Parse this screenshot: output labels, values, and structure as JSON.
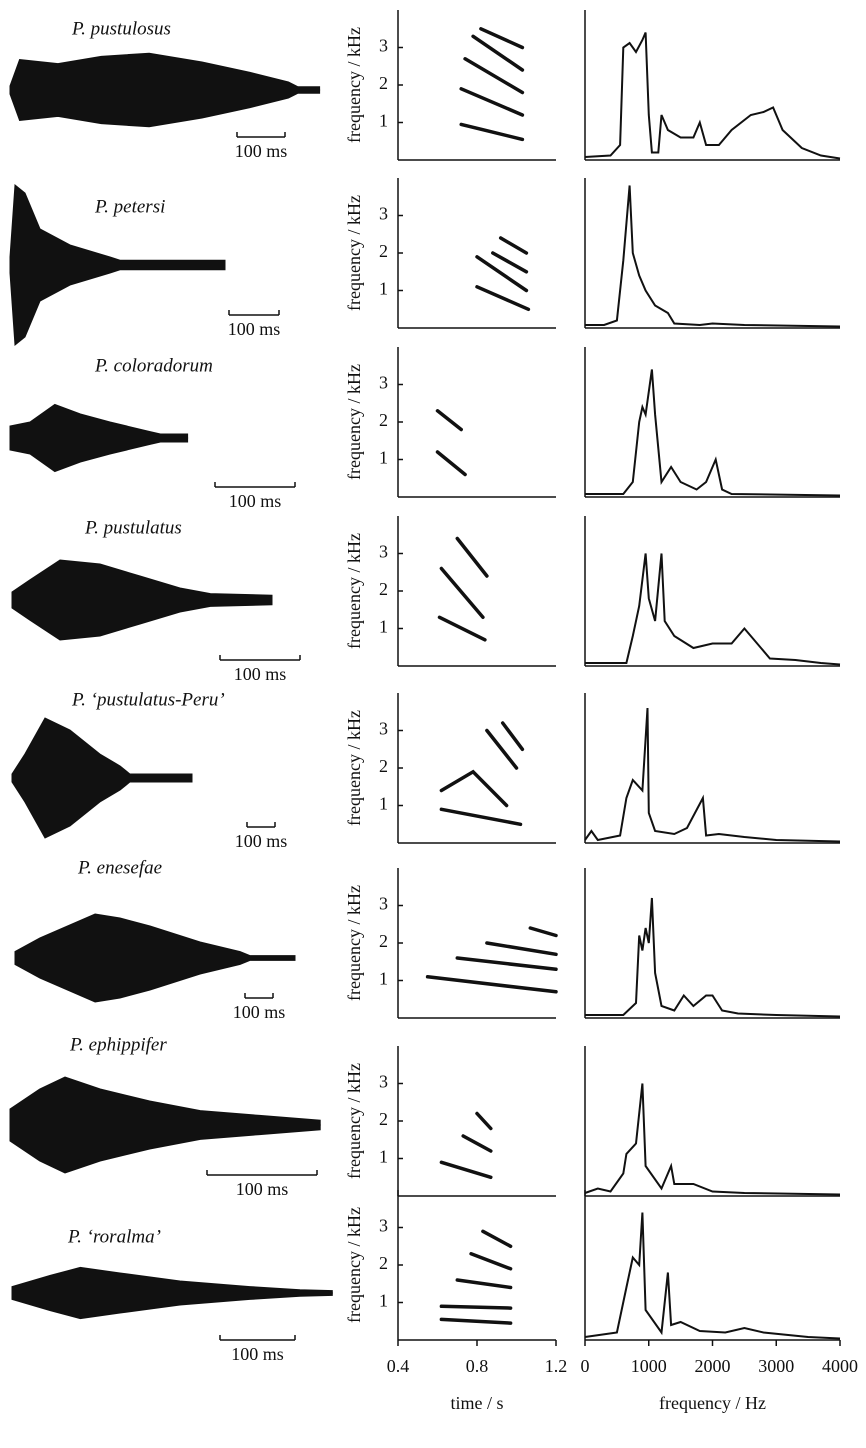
{
  "chart_data": {
    "type": "figure",
    "spectrogram": {
      "xlim": [
        0.4,
        1.2
      ],
      "xticks": [
        0.4,
        0.8,
        1.2
      ],
      "ylim": [
        0,
        4
      ],
      "yticks": [
        1,
        2,
        3
      ],
      "xlabel": "time / s",
      "ylabel": "frequency / kHz"
    },
    "spectrum": {
      "xlim": [
        0,
        4000
      ],
      "xticks": [
        0,
        1000,
        2000,
        3000,
        4000
      ],
      "xlabel": "frequency / Hz"
    },
    "species": [
      {
        "name": "P. pustulosus",
        "scale_label": "100 ms",
        "waveform": {
          "t": [
            0,
            20,
            100,
            190,
            290,
            400,
            500,
            580,
            600,
            645
          ],
          "amp": [
            0.05,
            0.38,
            0.33,
            0.42,
            0.46,
            0.35,
            0.22,
            0.1,
            0.04,
            0.04
          ]
        },
        "harmonics": [
          {
            "t": [
              0.72,
              1.03
            ],
            "f": [
              0.95,
              0.55
            ]
          },
          {
            "t": [
              0.72,
              1.03
            ],
            "f": [
              1.9,
              1.2
            ]
          },
          {
            "t": [
              0.74,
              1.03
            ],
            "f": [
              2.7,
              1.8
            ]
          },
          {
            "t": [
              0.78,
              1.03
            ],
            "f": [
              3.3,
              2.4
            ]
          },
          {
            "t": [
              0.82,
              1.03
            ],
            "f": [
              3.5,
              3.0
            ]
          }
        ],
        "spectrum": {
          "x": [
            0,
            400,
            550,
            600,
            700,
            800,
            900,
            950,
            1000,
            1050,
            1150,
            1200,
            1300,
            1500,
            1700,
            1800,
            1900,
            2100,
            2300,
            2600,
            2800,
            2950,
            3100,
            3400,
            3700,
            4000
          ],
          "amp": [
            0.02,
            0.03,
            0.1,
            0.75,
            0.78,
            0.72,
            0.8,
            0.85,
            0.3,
            0.05,
            0.05,
            0.3,
            0.2,
            0.15,
            0.15,
            0.25,
            0.1,
            0.1,
            0.2,
            0.3,
            0.32,
            0.35,
            0.2,
            0.08,
            0.03,
            0.01
          ]
        }
      },
      {
        "name": "P. petersi",
        "scale_label": "100 ms",
        "waveform": {
          "t": [
            0,
            10,
            30,
            60,
            120,
            200,
            220,
            430
          ],
          "amp": [
            0.1,
            1,
            0.9,
            0.45,
            0.25,
            0.1,
            0.06,
            0.06
          ]
        },
        "harmonics": [
          {
            "t": [
              0.8,
              1.06
            ],
            "f": [
              1.1,
              0.5
            ]
          },
          {
            "t": [
              0.8,
              1.05
            ],
            "f": [
              1.9,
              1.0
            ]
          },
          {
            "t": [
              0.88,
              1.05
            ],
            "f": [
              2.0,
              1.5
            ]
          },
          {
            "t": [
              0.92,
              1.05
            ],
            "f": [
              2.4,
              2.0
            ]
          }
        ],
        "spectrum": {
          "x": [
            0,
            300,
            500,
            600,
            700,
            750,
            850,
            950,
            1100,
            1300,
            1400,
            1800,
            2000,
            2500,
            4000
          ],
          "amp": [
            0.02,
            0.02,
            0.05,
            0.45,
            0.95,
            0.5,
            0.35,
            0.25,
            0.15,
            0.1,
            0.03,
            0.02,
            0.03,
            0.02,
            0.01
          ]
        }
      },
      {
        "name": "P. coloradorum",
        "scale_label": "100 ms",
        "waveform": {
          "t": [
            0,
            25,
            56,
            88,
            125,
            175,
            188,
            222
          ],
          "amp": [
            0.15,
            0.2,
            0.42,
            0.3,
            0.2,
            0.08,
            0.05,
            0.05
          ]
        },
        "harmonics": [
          {
            "t": [
              0.6,
              0.74
            ],
            "f": [
              1.2,
              0.6
            ]
          },
          {
            "t": [
              0.6,
              0.72
            ],
            "f": [
              2.3,
              1.8
            ]
          }
        ],
        "spectrum": {
          "x": [
            0,
            600,
            750,
            850,
            900,
            950,
            1050,
            1100,
            1200,
            1350,
            1500,
            1750,
            1900,
            2050,
            2150,
            2300,
            4000
          ],
          "amp": [
            0.02,
            0.02,
            0.1,
            0.5,
            0.6,
            0.55,
            0.85,
            0.55,
            0.1,
            0.2,
            0.1,
            0.05,
            0.1,
            0.25,
            0.05,
            0.02,
            0.01
          ]
        }
      },
      {
        "name": "P. pustulatus",
        "scale_label": "100 ms",
        "waveform": {
          "t": [
            0,
            22,
            60,
            110,
            160,
            210,
            248,
            325
          ],
          "amp": [
            0.1,
            0.25,
            0.5,
            0.45,
            0.3,
            0.15,
            0.08,
            0.06
          ]
        },
        "harmonics": [
          {
            "t": [
              0.61,
              0.84
            ],
            "f": [
              1.3,
              0.7
            ]
          },
          {
            "t": [
              0.62,
              0.83
            ],
            "f": [
              2.6,
              1.3
            ]
          },
          {
            "t": [
              0.7,
              0.85
            ],
            "f": [
              3.4,
              2.4
            ]
          }
        ],
        "spectrum": {
          "x": [
            0,
            650,
            750,
            850,
            950,
            1000,
            1100,
            1200,
            1250,
            1400,
            1700,
            2000,
            2300,
            2500,
            2600,
            2900,
            3300,
            3700,
            4000
          ],
          "amp": [
            0.02,
            0.02,
            0.2,
            0.4,
            0.75,
            0.45,
            0.3,
            0.75,
            0.3,
            0.2,
            0.12,
            0.15,
            0.15,
            0.25,
            0.2,
            0.05,
            0.04,
            0.02,
            0.01
          ]
        }
      },
      {
        "name": "P. ‘pustulatus-Peru’",
        "scale_label": "100 ms",
        "waveform": {
          "t": [
            0,
            46,
            118,
            207,
            314,
            386,
            421,
            643
          ],
          "amp": [
            0.05,
            0.3,
            0.75,
            0.6,
            0.3,
            0.15,
            0.05,
            0.05
          ]
        },
        "harmonics": [
          {
            "t": [
              0.62,
              1.02
            ],
            "f": [
              0.9,
              0.5
            ]
          },
          {
            "t": [
              0.62,
              0.78,
              0.95
            ],
            "f": [
              1.4,
              1.9,
              1.0
            ]
          },
          {
            "t": [
              0.85,
              1.0
            ],
            "f": [
              3.0,
              2.0
            ]
          },
          {
            "t": [
              0.93,
              1.03
            ],
            "f": [
              3.2,
              2.5
            ]
          }
        ],
        "spectrum": {
          "x": [
            0,
            100,
            200,
            550,
            650,
            750,
            900,
            980,
            1000,
            1100,
            1400,
            1600,
            1850,
            1900,
            2100,
            2500,
            3000,
            4000
          ],
          "amp": [
            0.02,
            0.08,
            0.02,
            0.05,
            0.3,
            0.42,
            0.35,
            0.9,
            0.2,
            0.08,
            0.06,
            0.1,
            0.3,
            0.05,
            0.06,
            0.04,
            0.02,
            0.01
          ]
        }
      },
      {
        "name": "P. enesefae",
        "scale_label": "100 ms",
        "waveform": {
          "t": [
            0,
            89,
            286,
            375,
            482,
            661,
            804,
            839,
            1000
          ],
          "amp": [
            0.08,
            0.25,
            0.55,
            0.5,
            0.4,
            0.2,
            0.08,
            0.03,
            0.03
          ]
        },
        "harmonics": [
          {
            "t": [
              0.55,
              1.2
            ],
            "f": [
              1.1,
              0.7
            ]
          },
          {
            "t": [
              0.7,
              1.2
            ],
            "f": [
              1.6,
              1.3
            ]
          },
          {
            "t": [
              0.85,
              1.2
            ],
            "f": [
              2.0,
              1.7
            ]
          },
          {
            "t": [
              1.07,
              1.2
            ],
            "f": [
              2.4,
              2.2
            ]
          }
        ],
        "spectrum": {
          "x": [
            0,
            600,
            800,
            850,
            900,
            950,
            1000,
            1050,
            1100,
            1200,
            1400,
            1550,
            1700,
            1900,
            2000,
            2150,
            2400,
            3000,
            4000
          ],
          "amp": [
            0.02,
            0.02,
            0.1,
            0.55,
            0.45,
            0.6,
            0.5,
            0.8,
            0.3,
            0.08,
            0.05,
            0.15,
            0.08,
            0.15,
            0.15,
            0.05,
            0.03,
            0.02,
            0.01
          ]
        }
      },
      {
        "name": "P. ephippifer",
        "scale_label": "100 ms",
        "waveform": {
          "t": [
            0,
            27,
            50,
            82,
            127,
            173,
            227,
            264,
            282
          ],
          "amp": [
            0.2,
            0.45,
            0.6,
            0.45,
            0.3,
            0.18,
            0.12,
            0.08,
            0.06
          ]
        },
        "harmonics": [
          {
            "t": [
              0.62,
              0.87
            ],
            "f": [
              0.9,
              0.5
            ]
          },
          {
            "t": [
              0.73,
              0.87
            ],
            "f": [
              1.6,
              1.2
            ]
          },
          {
            "t": [
              0.8,
              0.87
            ],
            "f": [
              2.2,
              1.8
            ]
          }
        ],
        "spectrum": {
          "x": [
            0,
            200,
            400,
            600,
            650,
            800,
            900,
            950,
            1200,
            1350,
            1400,
            1700,
            2000,
            2500,
            4000
          ],
          "amp": [
            0.02,
            0.05,
            0.03,
            0.15,
            0.28,
            0.35,
            0.75,
            0.2,
            0.05,
            0.2,
            0.08,
            0.08,
            0.03,
            0.02,
            0.01
          ]
        }
      },
      {
        "name": "P. ‘roralma’",
        "scale_label": "100 ms",
        "waveform": {
          "t": [
            0,
            51,
            91,
            144,
            224,
            317,
            384,
            427
          ],
          "amp": [
            0.08,
            0.22,
            0.32,
            0.25,
            0.15,
            0.08,
            0.04,
            0.03
          ]
        },
        "harmonics": [
          {
            "t": [
              0.62,
              0.97
            ],
            "f": [
              0.55,
              0.45
            ]
          },
          {
            "t": [
              0.62,
              0.97
            ],
            "f": [
              0.9,
              0.85
            ]
          },
          {
            "t": [
              0.7,
              0.97
            ],
            "f": [
              1.6,
              1.4
            ]
          },
          {
            "t": [
              0.77,
              0.97
            ],
            "f": [
              2.3,
              1.9
            ]
          },
          {
            "t": [
              0.83,
              0.97
            ],
            "f": [
              2.9,
              2.5
            ]
          }
        ],
        "spectrum": {
          "x": [
            0,
            500,
            650,
            750,
            850,
            900,
            950,
            1200,
            1300,
            1350,
            1500,
            1800,
            2200,
            2500,
            2800,
            3500,
            4000
          ],
          "amp": [
            0.02,
            0.05,
            0.35,
            0.55,
            0.5,
            0.85,
            0.2,
            0.05,
            0.45,
            0.1,
            0.12,
            0.06,
            0.05,
            0.08,
            0.05,
            0.02,
            0.01
          ]
        }
      }
    ]
  }
}
